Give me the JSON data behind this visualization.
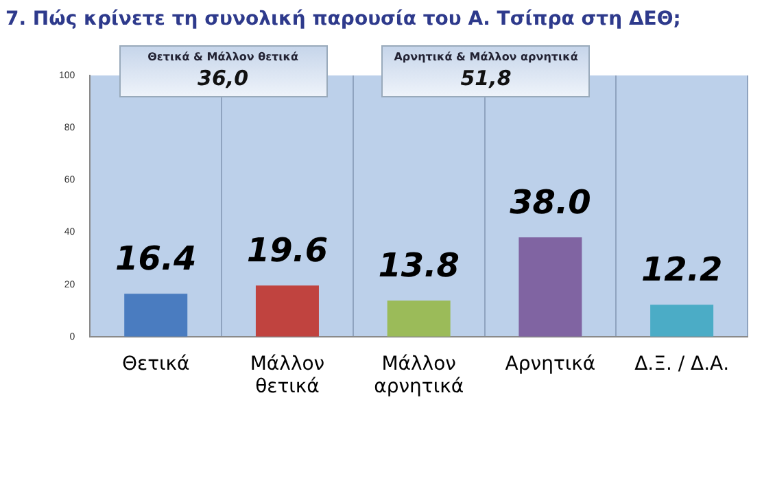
{
  "chart_data": {
    "type": "bar",
    "title": "7. Πώς κρίνετε τη συνολική παρουσία του Α. Τσίπρα στη ΔΕΘ;",
    "categories": [
      "Θετικά",
      "Μάλλον\nθετικά",
      "Μάλλον\nαρνητικά",
      "Αρνητικά",
      "Δ.Ξ. / Δ.Α."
    ],
    "values": [
      16.4,
      19.6,
      13.8,
      38.0,
      12.2
    ],
    "colors": [
      "#4a7cc0",
      "#c0433f",
      "#9bbb59",
      "#8064a2",
      "#4bacc6"
    ],
    "value_labels": [
      "16.4",
      "19.6",
      "13.8",
      "38.0",
      "12.2"
    ],
    "ylim": [
      0,
      100
    ],
    "yticks": [
      0,
      20,
      40,
      60,
      80,
      100
    ],
    "grid": "x",
    "legend": false,
    "annotations": [
      "Θετικά & Μάλλον θετικά",
      "36,0",
      "Αρνητικά & Μάλλον αρνητικά",
      "51,8"
    ]
  }
}
